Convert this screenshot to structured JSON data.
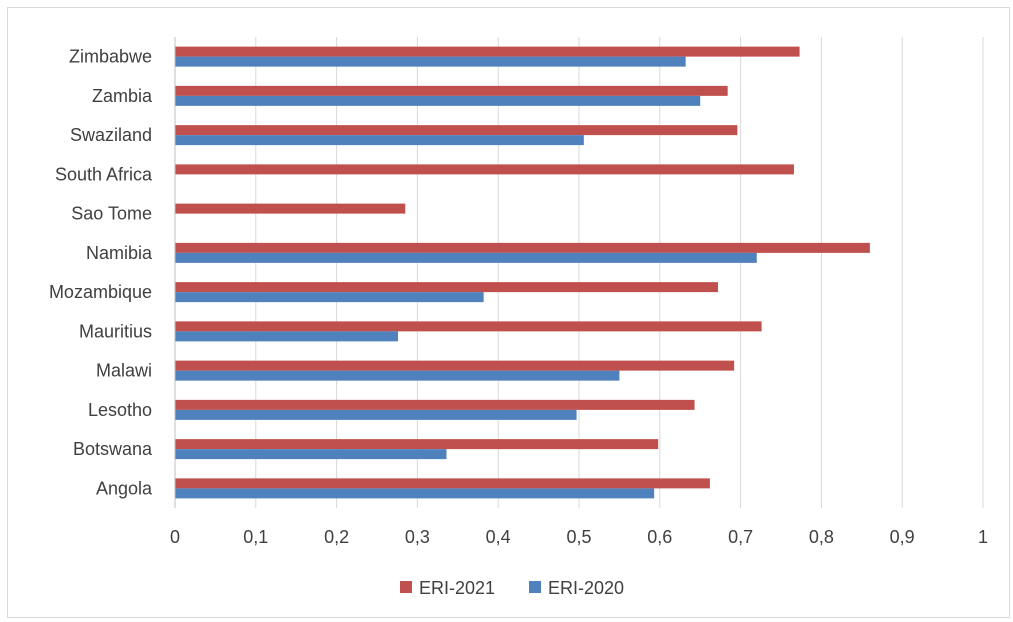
{
  "chart_data": {
    "type": "bar",
    "orientation": "horizontal",
    "categories": [
      "Angola",
      "Botswana",
      "Lesotho",
      "Malawi",
      "Mauritius",
      "Mozambique",
      "Namibia",
      "Sao Tome",
      "South Africa",
      "Swaziland",
      "Zambia",
      "Zimbabwe"
    ],
    "series": [
      {
        "name": "ERI-2021",
        "color": "#c0504d",
        "values": [
          0.662,
          0.598,
          0.643,
          0.692,
          0.726,
          0.672,
          0.86,
          0.285,
          0.766,
          0.696,
          0.684,
          0.773
        ]
      },
      {
        "name": "ERI-2020",
        "color": "#4f81bd",
        "values": [
          0.593,
          0.336,
          0.497,
          0.55,
          0.276,
          0.382,
          0.72,
          null,
          null,
          0.506,
          0.65,
          0.632
        ]
      }
    ],
    "x_ticks": [
      "0",
      "0,1",
      "0,2",
      "0,3",
      "0,4",
      "0,5",
      "0,6",
      "0,7",
      "0,8",
      "0,9",
      "1"
    ],
    "xlim": [
      0,
      1
    ],
    "grid": "vertical",
    "legend_position": "bottom"
  }
}
